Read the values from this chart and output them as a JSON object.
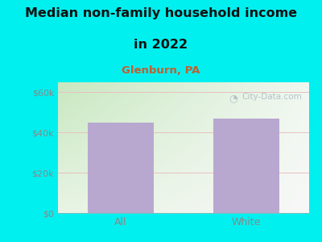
{
  "categories": [
    "All",
    "White"
  ],
  "values": [
    45000,
    47000
  ],
  "bar_color": "#b8a8d0",
  "title_line1": "Median non-family household income",
  "title_line2": "in 2022",
  "subtitle": "Glenburn, PA",
  "subtitle_color": "#c06030",
  "title_color": "#111111",
  "background_color": "#00f0f0",
  "plot_bg_topleft": "#c8e8c0",
  "plot_bg_bottomright": "#f8f8f8",
  "ylabel_ticks": [
    0,
    20000,
    40000,
    60000
  ],
  "ylabel_labels": [
    "$0",
    "$20k",
    "$40k",
    "$60k"
  ],
  "ylim": [
    0,
    65000
  ],
  "tick_color": "#888888",
  "grid_color": "#e8c0c0",
  "watermark": "City-Data.com",
  "watermark_color": "#b0bcc8",
  "title_fontsize": 11.5,
  "subtitle_fontsize": 9.5
}
